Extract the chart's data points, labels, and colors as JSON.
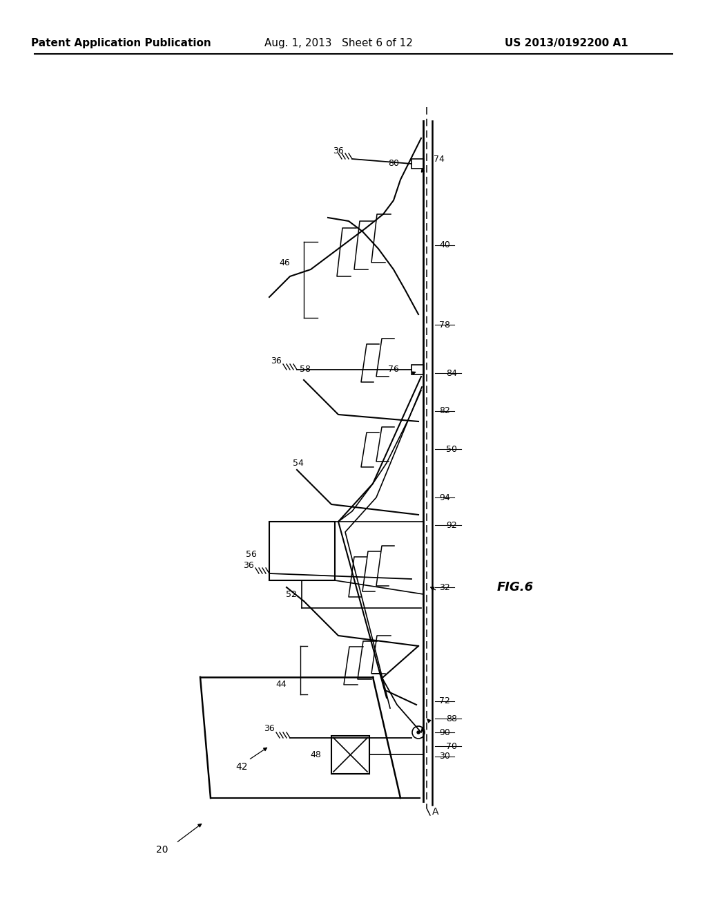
{
  "header_left": "Patent Application Publication",
  "header_center": "Aug. 1, 2013   Sheet 6 of 12",
  "header_right": "US 2013/0192200 A1",
  "fig_label": "FIG.6",
  "bg_color": "#ffffff",
  "line_color": "#000000"
}
